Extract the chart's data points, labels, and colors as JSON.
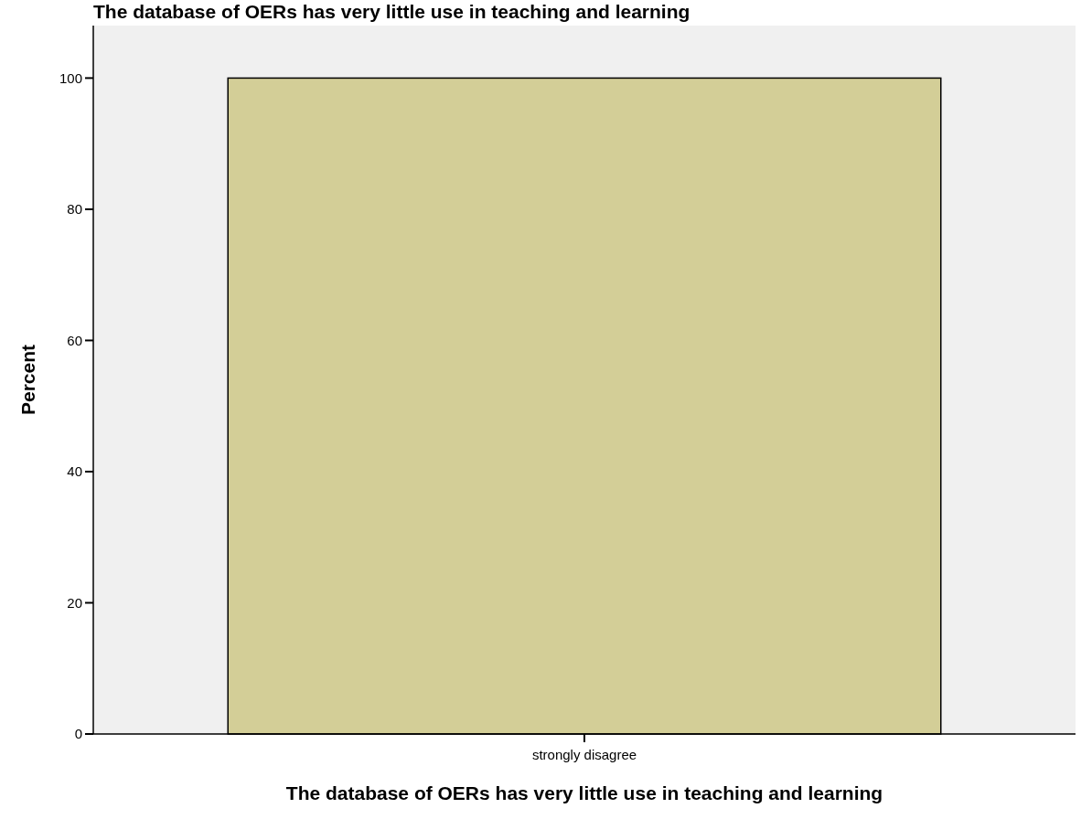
{
  "chart_data": {
    "type": "bar",
    "title": "The database of OERs has very little use in teaching and learning",
    "xlabel": "The database of OERs has very little use in teaching and learning",
    "ylabel": "Percent",
    "categories": [
      "strongly disagree"
    ],
    "values": [
      100
    ],
    "color": "#d3ce97",
    "ylim": [
      0,
      108
    ],
    "yticks": [
      0,
      20,
      40,
      60,
      80,
      100
    ],
    "grid": false
  }
}
